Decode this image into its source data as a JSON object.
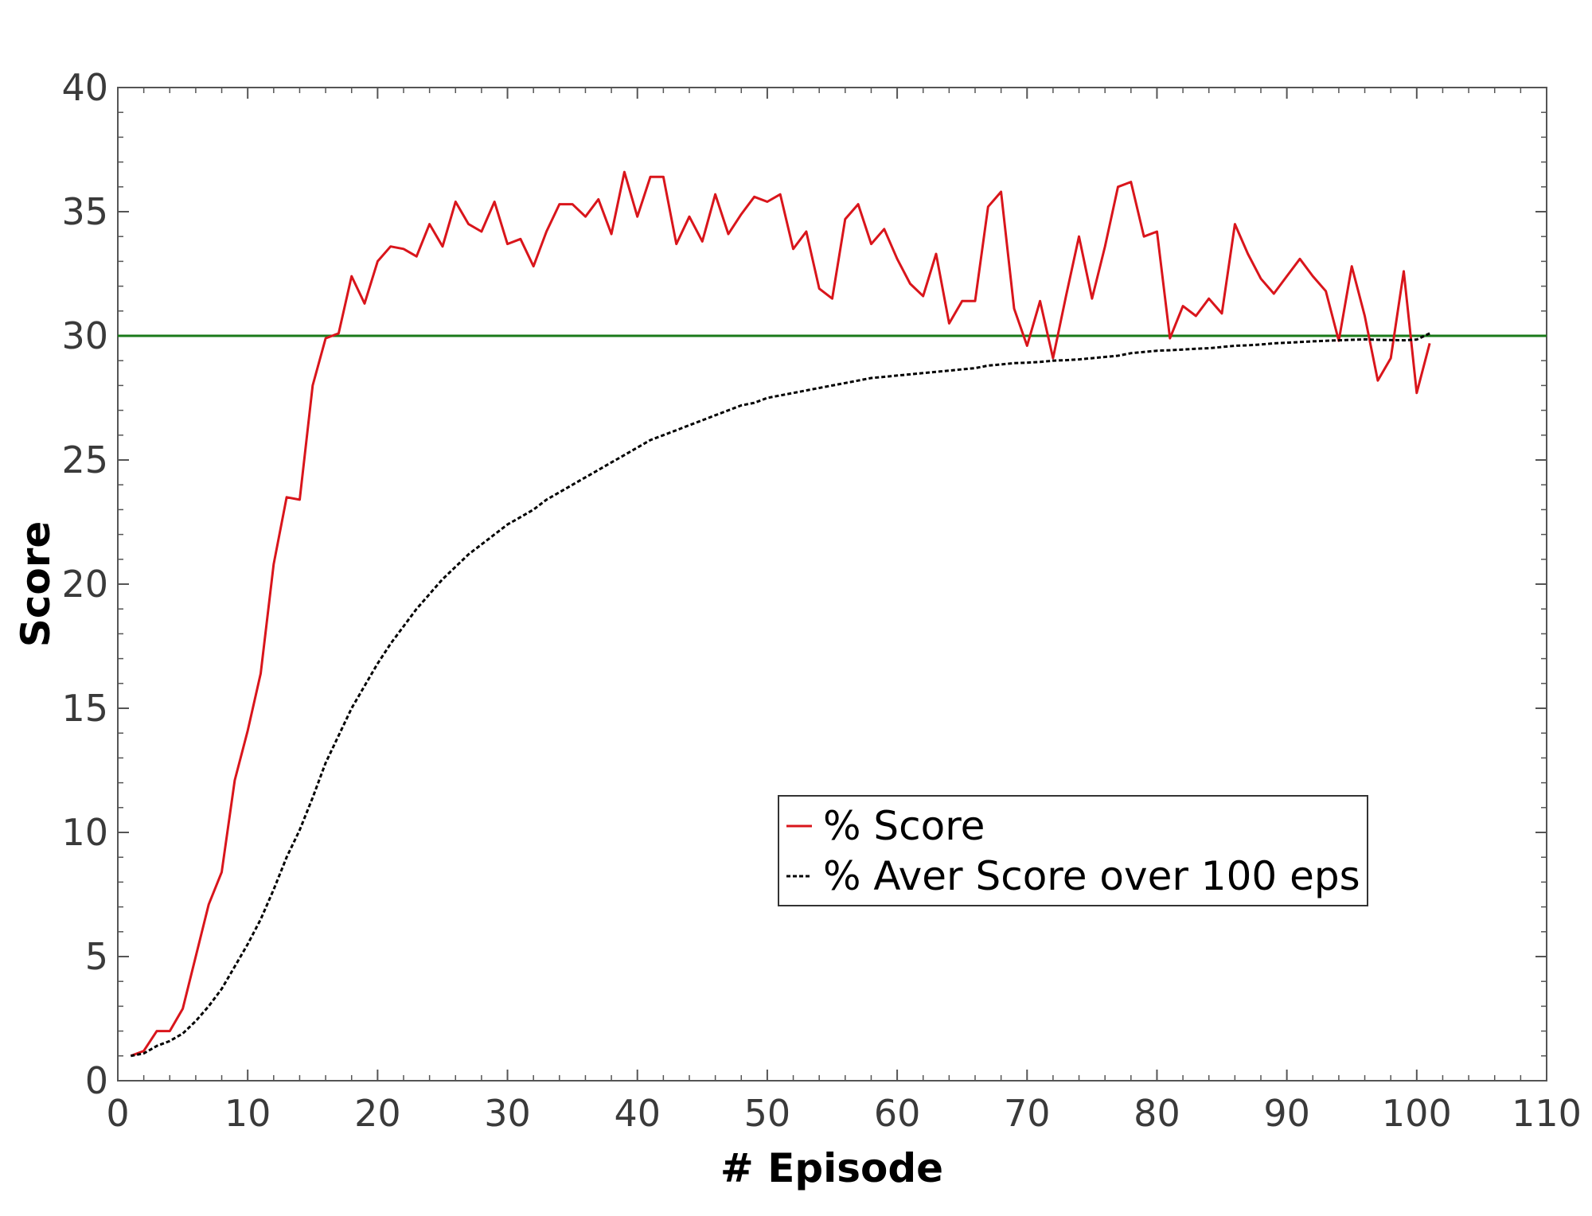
{
  "chart_data": {
    "type": "line",
    "title": "",
    "xlabel": "# Episode",
    "ylabel": "Score",
    "xlim": [
      0,
      110
    ],
    "ylim": [
      0,
      40
    ],
    "xticks": [
      0,
      10,
      20,
      30,
      40,
      50,
      60,
      70,
      80,
      90,
      100,
      110
    ],
    "yticks": [
      0,
      5,
      10,
      15,
      20,
      25,
      30,
      35,
      40
    ],
    "grid": false,
    "legend_position": "lower-right",
    "threshold": {
      "y": 30,
      "color": "#1a7a1a"
    },
    "series": [
      {
        "name": "% Score",
        "color": "#d9151b",
        "style": "solid",
        "x": [
          1,
          2,
          3,
          4,
          5,
          6,
          7,
          8,
          9,
          10,
          11,
          12,
          13,
          14,
          15,
          16,
          17,
          18,
          19,
          20,
          21,
          22,
          23,
          24,
          25,
          26,
          27,
          28,
          29,
          30,
          31,
          32,
          33,
          34,
          35,
          36,
          37,
          38,
          39,
          40,
          41,
          42,
          43,
          44,
          45,
          46,
          47,
          48,
          49,
          50,
          51,
          52,
          53,
          54,
          55,
          56,
          57,
          58,
          59,
          60,
          61,
          62,
          63,
          64,
          65,
          66,
          67,
          68,
          69,
          70,
          71,
          72,
          73,
          74,
          75,
          76,
          77,
          78,
          79,
          80,
          81,
          82,
          83,
          84,
          85,
          86,
          87,
          88,
          89,
          90,
          91,
          92,
          93,
          94,
          95,
          96,
          97,
          98,
          99,
          100,
          101
        ],
        "values": [
          1.0,
          1.2,
          2.0,
          2.0,
          2.9,
          5.0,
          7.1,
          8.4,
          12.1,
          14.1,
          16.4,
          20.8,
          23.5,
          23.4,
          28.0,
          29.9,
          30.1,
          32.4,
          31.3,
          33.0,
          33.6,
          33.5,
          33.2,
          34.5,
          33.6,
          35.4,
          34.5,
          34.2,
          35.4,
          33.7,
          33.9,
          32.8,
          34.2,
          35.3,
          35.3,
          34.8,
          35.5,
          34.1,
          36.6,
          34.8,
          36.4,
          36.4,
          33.7,
          34.8,
          33.8,
          35.7,
          34.1,
          34.9,
          35.6,
          35.4,
          35.7,
          33.5,
          34.2,
          31.9,
          31.5,
          34.7,
          35.3,
          33.7,
          34.3,
          33.1,
          32.1,
          31.6,
          33.3,
          30.5,
          31.4,
          31.4,
          35.2,
          35.8,
          31.1,
          29.6,
          31.4,
          29.1,
          31.6,
          34.0,
          31.5,
          33.6,
          36.0,
          36.2,
          34.0,
          34.2,
          29.9,
          31.2,
          30.8,
          31.5,
          30.9,
          34.5,
          33.3,
          32.3,
          31.7,
          32.4,
          33.1,
          32.4,
          31.8,
          29.8,
          32.8,
          30.8,
          28.2,
          29.1,
          32.6,
          27.7,
          29.7
        ]
      },
      {
        "name": "% Aver Score over 100 eps",
        "color": "#000000",
        "style": "dashed",
        "x": [
          1,
          2,
          3,
          4,
          5,
          6,
          7,
          8,
          9,
          10,
          11,
          12,
          13,
          14,
          15,
          16,
          17,
          18,
          19,
          20,
          21,
          22,
          23,
          24,
          25,
          26,
          27,
          28,
          29,
          30,
          31,
          32,
          33,
          34,
          35,
          36,
          37,
          38,
          39,
          40,
          41,
          42,
          43,
          44,
          45,
          46,
          47,
          48,
          49,
          50,
          51,
          52,
          53,
          54,
          55,
          56,
          57,
          58,
          59,
          60,
          61,
          62,
          63,
          64,
          65,
          66,
          67,
          68,
          69,
          70,
          71,
          72,
          73,
          74,
          75,
          76,
          77,
          78,
          79,
          80,
          81,
          82,
          83,
          84,
          85,
          86,
          87,
          88,
          89,
          90,
          91,
          92,
          93,
          94,
          95,
          96,
          97,
          98,
          99,
          100,
          101
        ],
        "values": [
          1.0,
          1.1,
          1.4,
          1.6,
          1.9,
          2.4,
          3.0,
          3.7,
          4.6,
          5.5,
          6.5,
          7.7,
          9.0,
          10.1,
          11.4,
          12.8,
          13.9,
          15.0,
          15.9,
          16.8,
          17.6,
          18.3,
          19.0,
          19.6,
          20.2,
          20.7,
          21.2,
          21.6,
          22.0,
          22.4,
          22.7,
          23.0,
          23.4,
          23.7,
          24.0,
          24.3,
          24.6,
          24.9,
          25.2,
          25.5,
          25.8,
          26.0,
          26.2,
          26.4,
          26.6,
          26.8,
          27.0,
          27.2,
          27.3,
          27.5,
          27.6,
          27.7,
          27.8,
          27.9,
          28.0,
          28.1,
          28.2,
          28.3,
          28.35,
          28.4,
          28.45,
          28.5,
          28.55,
          28.6,
          28.65,
          28.7,
          28.8,
          28.85,
          28.9,
          28.92,
          28.95,
          29.0,
          29.02,
          29.05,
          29.1,
          29.15,
          29.2,
          29.3,
          29.35,
          29.4,
          29.42,
          29.45,
          29.48,
          29.5,
          29.55,
          29.6,
          29.62,
          29.65,
          29.7,
          29.72,
          29.75,
          29.78,
          29.8,
          29.82,
          29.84,
          29.86,
          29.84,
          29.83,
          29.82,
          29.85,
          30.1
        ]
      }
    ]
  }
}
